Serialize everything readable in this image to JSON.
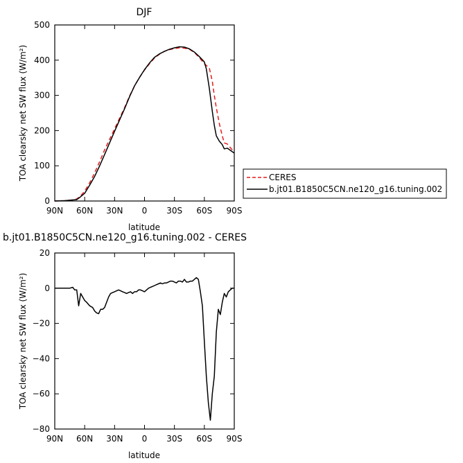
{
  "chart_data": [
    {
      "type": "line",
      "title": "DJF",
      "xlabel": "latitude",
      "ylabel": "TOA clearsky net SW flux (W/m²)",
      "xlim": [
        90,
        -90
      ],
      "ylim": [
        0,
        500
      ],
      "xticks": [
        90,
        60,
        30,
        0,
        -30,
        -60,
        -90
      ],
      "xtick_labels": [
        "90N",
        "60N",
        "30N",
        "0",
        "30S",
        "60S",
        "90S"
      ],
      "yticks": [
        0,
        100,
        200,
        300,
        400,
        500
      ],
      "ytick_labels": [
        "0",
        "100",
        "200",
        "300",
        "400",
        "500"
      ],
      "grid": false,
      "legend_position": "right, outside plot",
      "series": [
        {
          "name": "CERES",
          "color": "#e41a1c",
          "dash": "dashed",
          "x": [
            90,
            80,
            72,
            68,
            65,
            60,
            55,
            50,
            45,
            40,
            35,
            30,
            25,
            20,
            15,
            10,
            5,
            0,
            -5,
            -10,
            -15,
            -20,
            -25,
            -30,
            -35,
            -40,
            -45,
            -50,
            -55,
            -60,
            -65,
            -68,
            -70,
            -72,
            -75,
            -78,
            -80,
            -83,
            -85,
            -88,
            -90
          ],
          "y": [
            0,
            1,
            3,
            6,
            12,
            28,
            52,
            80,
            112,
            145,
            175,
            205,
            235,
            265,
            298,
            327,
            351,
            372,
            390,
            406,
            417,
            425,
            430,
            433,
            435,
            434,
            431,
            422,
            407,
            390,
            378,
            340,
            300,
            265,
            220,
            185,
            165,
            162,
            155,
            145,
            137
          ]
        },
        {
          "name": "b.jt01.B1850C5CN.ne120_g16.tuning.002",
          "color": "#000000",
          "dash": "solid",
          "x": [
            90,
            80,
            72,
            68,
            65,
            60,
            55,
            50,
            45,
            40,
            35,
            30,
            25,
            20,
            15,
            10,
            5,
            0,
            -5,
            -10,
            -15,
            -20,
            -25,
            -30,
            -35,
            -40,
            -45,
            -50,
            -55,
            -60,
            -62,
            -65,
            -68,
            -70,
            -72,
            -75,
            -78,
            -80,
            -83,
            -85,
            -88,
            -90
          ],
          "y": [
            0,
            1,
            3,
            4,
            10,
            22,
            45,
            70,
            100,
            132,
            165,
            198,
            230,
            262,
            296,
            327,
            351,
            373,
            392,
            408,
            418,
            425,
            431,
            435,
            438,
            437,
            432,
            423,
            410,
            395,
            375,
            320,
            255,
            215,
            185,
            170,
            160,
            148,
            150,
            146,
            140,
            136
          ]
        }
      ]
    },
    {
      "type": "line",
      "title": "b.jt01.B1850C5CN.ne120_g16.tuning.002 - CERES",
      "xlabel": "latitude",
      "ylabel": "TOA clearsky net SW flux (W/m²)",
      "xlim": [
        90,
        -90
      ],
      "ylim": [
        -80,
        20
      ],
      "xticks": [
        90,
        60,
        30,
        0,
        -30,
        -60,
        -90
      ],
      "xtick_labels": [
        "90N",
        "60N",
        "30N",
        "0",
        "30S",
        "60S",
        "90S"
      ],
      "yticks": [
        -80,
        -60,
        -40,
        -20,
        0,
        20
      ],
      "ytick_labels": [
        "−80",
        "−60",
        "−40",
        "−20",
        "0",
        "20"
      ],
      "grid": false,
      "series": [
        {
          "color": "#000000",
          "dash": "solid",
          "x": [
            90,
            80,
            75,
            72,
            70,
            68,
            66,
            64,
            62,
            60,
            58,
            55,
            52,
            50,
            48,
            46,
            44,
            42,
            40,
            38,
            36,
            34,
            32,
            30,
            28,
            26,
            24,
            22,
            20,
            18,
            16,
            14,
            12,
            10,
            8,
            6,
            4,
            2,
            0,
            -2,
            -4,
            -6,
            -8,
            -10,
            -12,
            -14,
            -16,
            -18,
            -20,
            -22,
            -24,
            -26,
            -28,
            -30,
            -32,
            -34,
            -36,
            -38,
            -40,
            -42,
            -44,
            -46,
            -48,
            -50,
            -52,
            -54,
            -56,
            -58,
            -60,
            -62,
            -64,
            -66,
            -68,
            -70,
            -72,
            -74,
            -76,
            -78,
            -80,
            -82,
            -84,
            -86,
            -88,
            -90
          ],
          "y": [
            0,
            0,
            0,
            0.5,
            -1,
            -1,
            -10,
            -3,
            -5,
            -7,
            -8,
            -10,
            -11,
            -13,
            -14,
            -14.5,
            -12,
            -12,
            -11,
            -8,
            -5,
            -3,
            -2.5,
            -2,
            -1.5,
            -1,
            -1.5,
            -2,
            -2.5,
            -3,
            -2.5,
            -2,
            -3,
            -2,
            -2,
            -1,
            -1,
            -1.5,
            -2,
            -1,
            0,
            0.5,
            1,
            1.5,
            2,
            2.5,
            3,
            2.5,
            3,
            3,
            3.5,
            4,
            4,
            3.5,
            3,
            4,
            4,
            3.5,
            5,
            3.5,
            3.5,
            4,
            4,
            5,
            6,
            5,
            -2,
            -10,
            -30,
            -50,
            -65,
            -75,
            -60,
            -50,
            -25,
            -12,
            -15,
            -8,
            -3,
            -5,
            -2,
            -1,
            0,
            0
          ]
        }
      ]
    }
  ]
}
